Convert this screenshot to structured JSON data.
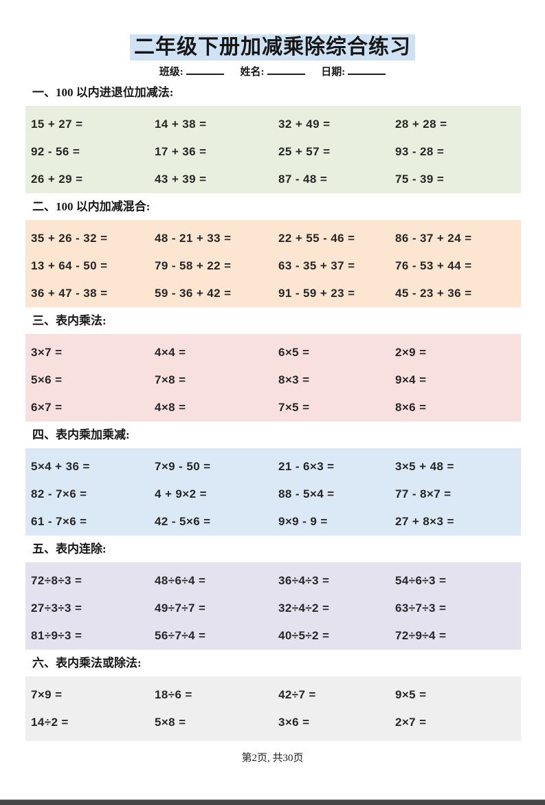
{
  "page": {
    "title": "二年级下册加减乘除综合练习",
    "meta": {
      "class_label": "班级:",
      "name_label": "姓名:",
      "date_label": "日期:"
    },
    "footer": "第2页, 共30页"
  },
  "colors": {
    "title_highlight": "#cfe2f3",
    "section_addsub": "#e8efde",
    "section_mixed": "#fce6d1",
    "section_multiply": "#f7e0dd",
    "section_mul_addsub": "#dbe9f6",
    "section_division": "#e5e2ef",
    "section_mul_or_div": "#efefef"
  },
  "sections": [
    {
      "heading": "一、100 以内进退位加减法:",
      "bg": "#e8efde",
      "rows": [
        [
          "15 + 27 =",
          "14 + 38 =",
          "32 + 49 =",
          "28 + 28 ="
        ],
        [
          "92 - 56 =",
          "17 + 36 =",
          "25 + 57 =",
          "93 - 28 ="
        ],
        [
          "26 + 29 =",
          "43 + 39 =",
          "87 - 48 =",
          "75 - 39 ="
        ]
      ]
    },
    {
      "heading": "二、100 以内加减混合:",
      "bg": "#fce6d1",
      "rows": [
        [
          "35 + 26 - 32 =",
          "48 - 21 + 33 =",
          "22 + 55 - 46 =",
          "86 - 37 + 24 ="
        ],
        [
          "13 + 64 - 50 =",
          "79 - 58 + 22 =",
          "63 - 35 + 37 =",
          "76 - 53 + 44 ="
        ],
        [
          "36 + 47 - 38 =",
          "59 - 36 + 42 =",
          "91 - 59 + 23 =",
          "45 - 23 + 36 ="
        ]
      ]
    },
    {
      "heading": "三、表内乘法:",
      "bg": "#f7e0dd",
      "rows": [
        [
          "3×7 =",
          "4×4 =",
          "6×5 =",
          "2×9 ="
        ],
        [
          "5×6 =",
          "7×8 =",
          "8×3 =",
          "9×4 ="
        ],
        [
          "6×7 =",
          "4×8 =",
          "7×5 =",
          "8×6 ="
        ]
      ]
    },
    {
      "heading": "四、表内乘加乘减:",
      "bg": "#dbe9f6",
      "rows": [
        [
          "5×4 + 36 =",
          "7×9 - 50 =",
          "21 - 6×3 =",
          "3×5 + 48 ="
        ],
        [
          "82 - 7×6 =",
          "4 + 9×2 =",
          "88 - 5×4 =",
          "77 - 8×7 ="
        ],
        [
          "61 - 7×6 =",
          "42 - 5×6 =",
          "9×9 - 9 =",
          "27 + 8×3 ="
        ]
      ]
    },
    {
      "heading": "五、表内连除:",
      "bg": "#e5e2ef",
      "rows": [
        [
          "72÷8÷3 =",
          "48÷6÷4 =",
          "36÷4÷3 =",
          "54÷6÷3 ="
        ],
        [
          "27÷3÷3 =",
          "49÷7÷7 =",
          "32÷4÷2 =",
          "63÷7÷3 ="
        ],
        [
          "81÷9÷3 =",
          "56÷7÷4 =",
          "40÷5÷2 =",
          "72÷9÷4 ="
        ]
      ]
    },
    {
      "heading": "六、表内乘法或除法:",
      "bg": "#efefef",
      "rows": [
        [
          "7×9 =",
          "18÷6 =",
          "42÷7 =",
          "9×5 ="
        ],
        [
          "14÷2 =",
          "5×8 =",
          "3×6 =",
          "2×7 ="
        ]
      ]
    }
  ]
}
